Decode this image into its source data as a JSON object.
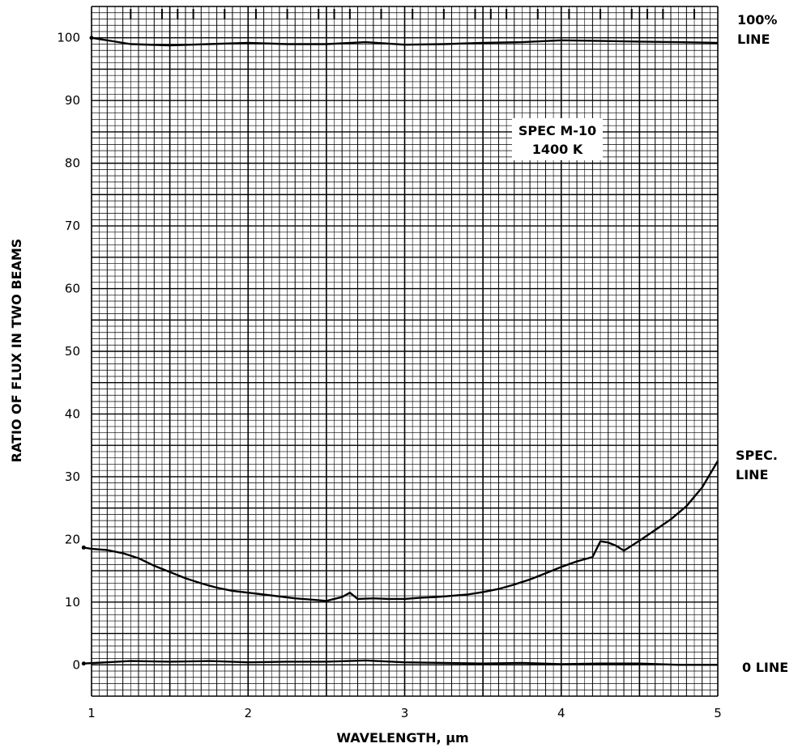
{
  "chart_data": {
    "type": "line",
    "xlabel": "WAVELENGTH, μm",
    "ylabel": "RATIO OF FLUX IN TWO BEAMS",
    "xlim": [
      1,
      5
    ],
    "ylim": [
      -5,
      105
    ],
    "x_ticks": [
      1,
      2,
      3,
      4,
      5
    ],
    "y_ticks": [
      0,
      10,
      20,
      30,
      40,
      50,
      60,
      70,
      80,
      90,
      100
    ],
    "grid": true,
    "annotations": [
      {
        "id": "label-box-line1",
        "text": "SPEC M-10"
      },
      {
        "id": "label-box-line2",
        "text": "1400 K"
      },
      {
        "id": "label-100-line1",
        "text": "100%"
      },
      {
        "id": "label-100-line2",
        "text": "LINE"
      },
      {
        "id": "label-spec-line1",
        "text": "SPEC."
      },
      {
        "id": "label-spec-line2",
        "text": "LINE"
      },
      {
        "id": "label-zero",
        "text": "0 LINE"
      }
    ],
    "series": [
      {
        "id": "hundred-percent-line",
        "x": [
          1.0,
          1.25,
          1.5,
          1.75,
          2.0,
          2.25,
          2.5,
          2.75,
          3.0,
          3.25,
          3.5,
          3.75,
          4.0,
          4.25,
          4.5,
          4.75,
          5.0
        ],
        "y": [
          100,
          99,
          98.8,
          99,
          99.2,
          99,
          99,
          99.3,
          98.9,
          99,
          99.2,
          99.3,
          99.6,
          99.5,
          99.4,
          99.3,
          99.2
        ]
      },
      {
        "id": "spec-line",
        "x": [
          0.95,
          1.0,
          1.1,
          1.2,
          1.3,
          1.4,
          1.5,
          1.6,
          1.7,
          1.8,
          1.9,
          2.0,
          2.1,
          2.2,
          2.3,
          2.4,
          2.5,
          2.6,
          2.65,
          2.7,
          2.8,
          2.9,
          3.0,
          3.1,
          3.2,
          3.3,
          3.4,
          3.5,
          3.6,
          3.7,
          3.8,
          3.9,
          4.0,
          4.1,
          4.2,
          4.25,
          4.3,
          4.35,
          4.4,
          4.5,
          4.6,
          4.7,
          4.8,
          4.9,
          5.0
        ],
        "y": [
          18.7,
          18.5,
          18.3,
          17.8,
          17,
          15.8,
          14.8,
          13.8,
          13,
          12.3,
          11.8,
          11.5,
          11.2,
          10.9,
          10.6,
          10.4,
          10.2,
          10.8,
          11.5,
          10.5,
          10.6,
          10.5,
          10.5,
          10.7,
          10.8,
          11,
          11.2,
          11.6,
          12.1,
          12.8,
          13.6,
          14.6,
          15.6,
          16.5,
          17.2,
          19.7,
          19.5,
          19,
          18.2,
          19.8,
          21.5,
          23.2,
          25.3,
          28.3,
          32.5
        ]
      },
      {
        "id": "zero-line",
        "x": [
          0.95,
          1.25,
          1.5,
          1.75,
          2.0,
          2.25,
          2.5,
          2.75,
          3.0,
          3.25,
          3.5,
          3.75,
          4.0,
          4.25,
          4.5,
          4.75,
          5.0
        ],
        "y": [
          0.2,
          0.6,
          0.5,
          0.6,
          0.4,
          0.5,
          0.5,
          0.7,
          0.4,
          0.3,
          0.2,
          0.3,
          0.1,
          0.2,
          0.2,
          0,
          0
        ]
      }
    ]
  }
}
